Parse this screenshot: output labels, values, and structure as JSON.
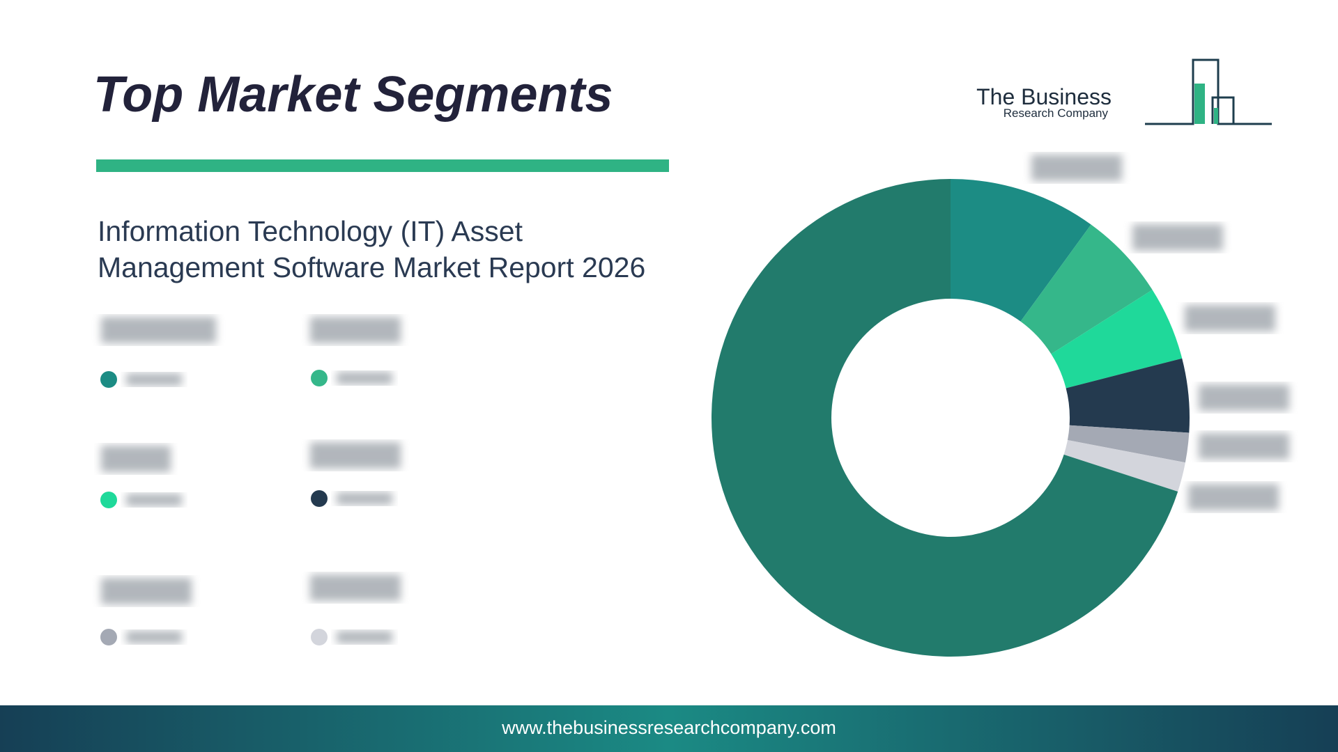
{
  "header": {
    "title": "Top Market Segments"
  },
  "logo": {
    "line1": "The Business",
    "line2": "Research Company"
  },
  "chart_data": {
    "type": "donut",
    "title": "Information Technology (IT) Asset Management Software Market Report 2026",
    "values": [
      10,
      6,
      5,
      5,
      2,
      2,
      70
    ],
    "colors": [
      "#1c8c84",
      "#35b78a",
      "#1fd99a",
      "#243a4f",
      "#a4a9b4",
      "#d3d5dc",
      "#227b6c"
    ]
  },
  "footer": {
    "url": "www.thebusinessresearchcompany.com"
  }
}
